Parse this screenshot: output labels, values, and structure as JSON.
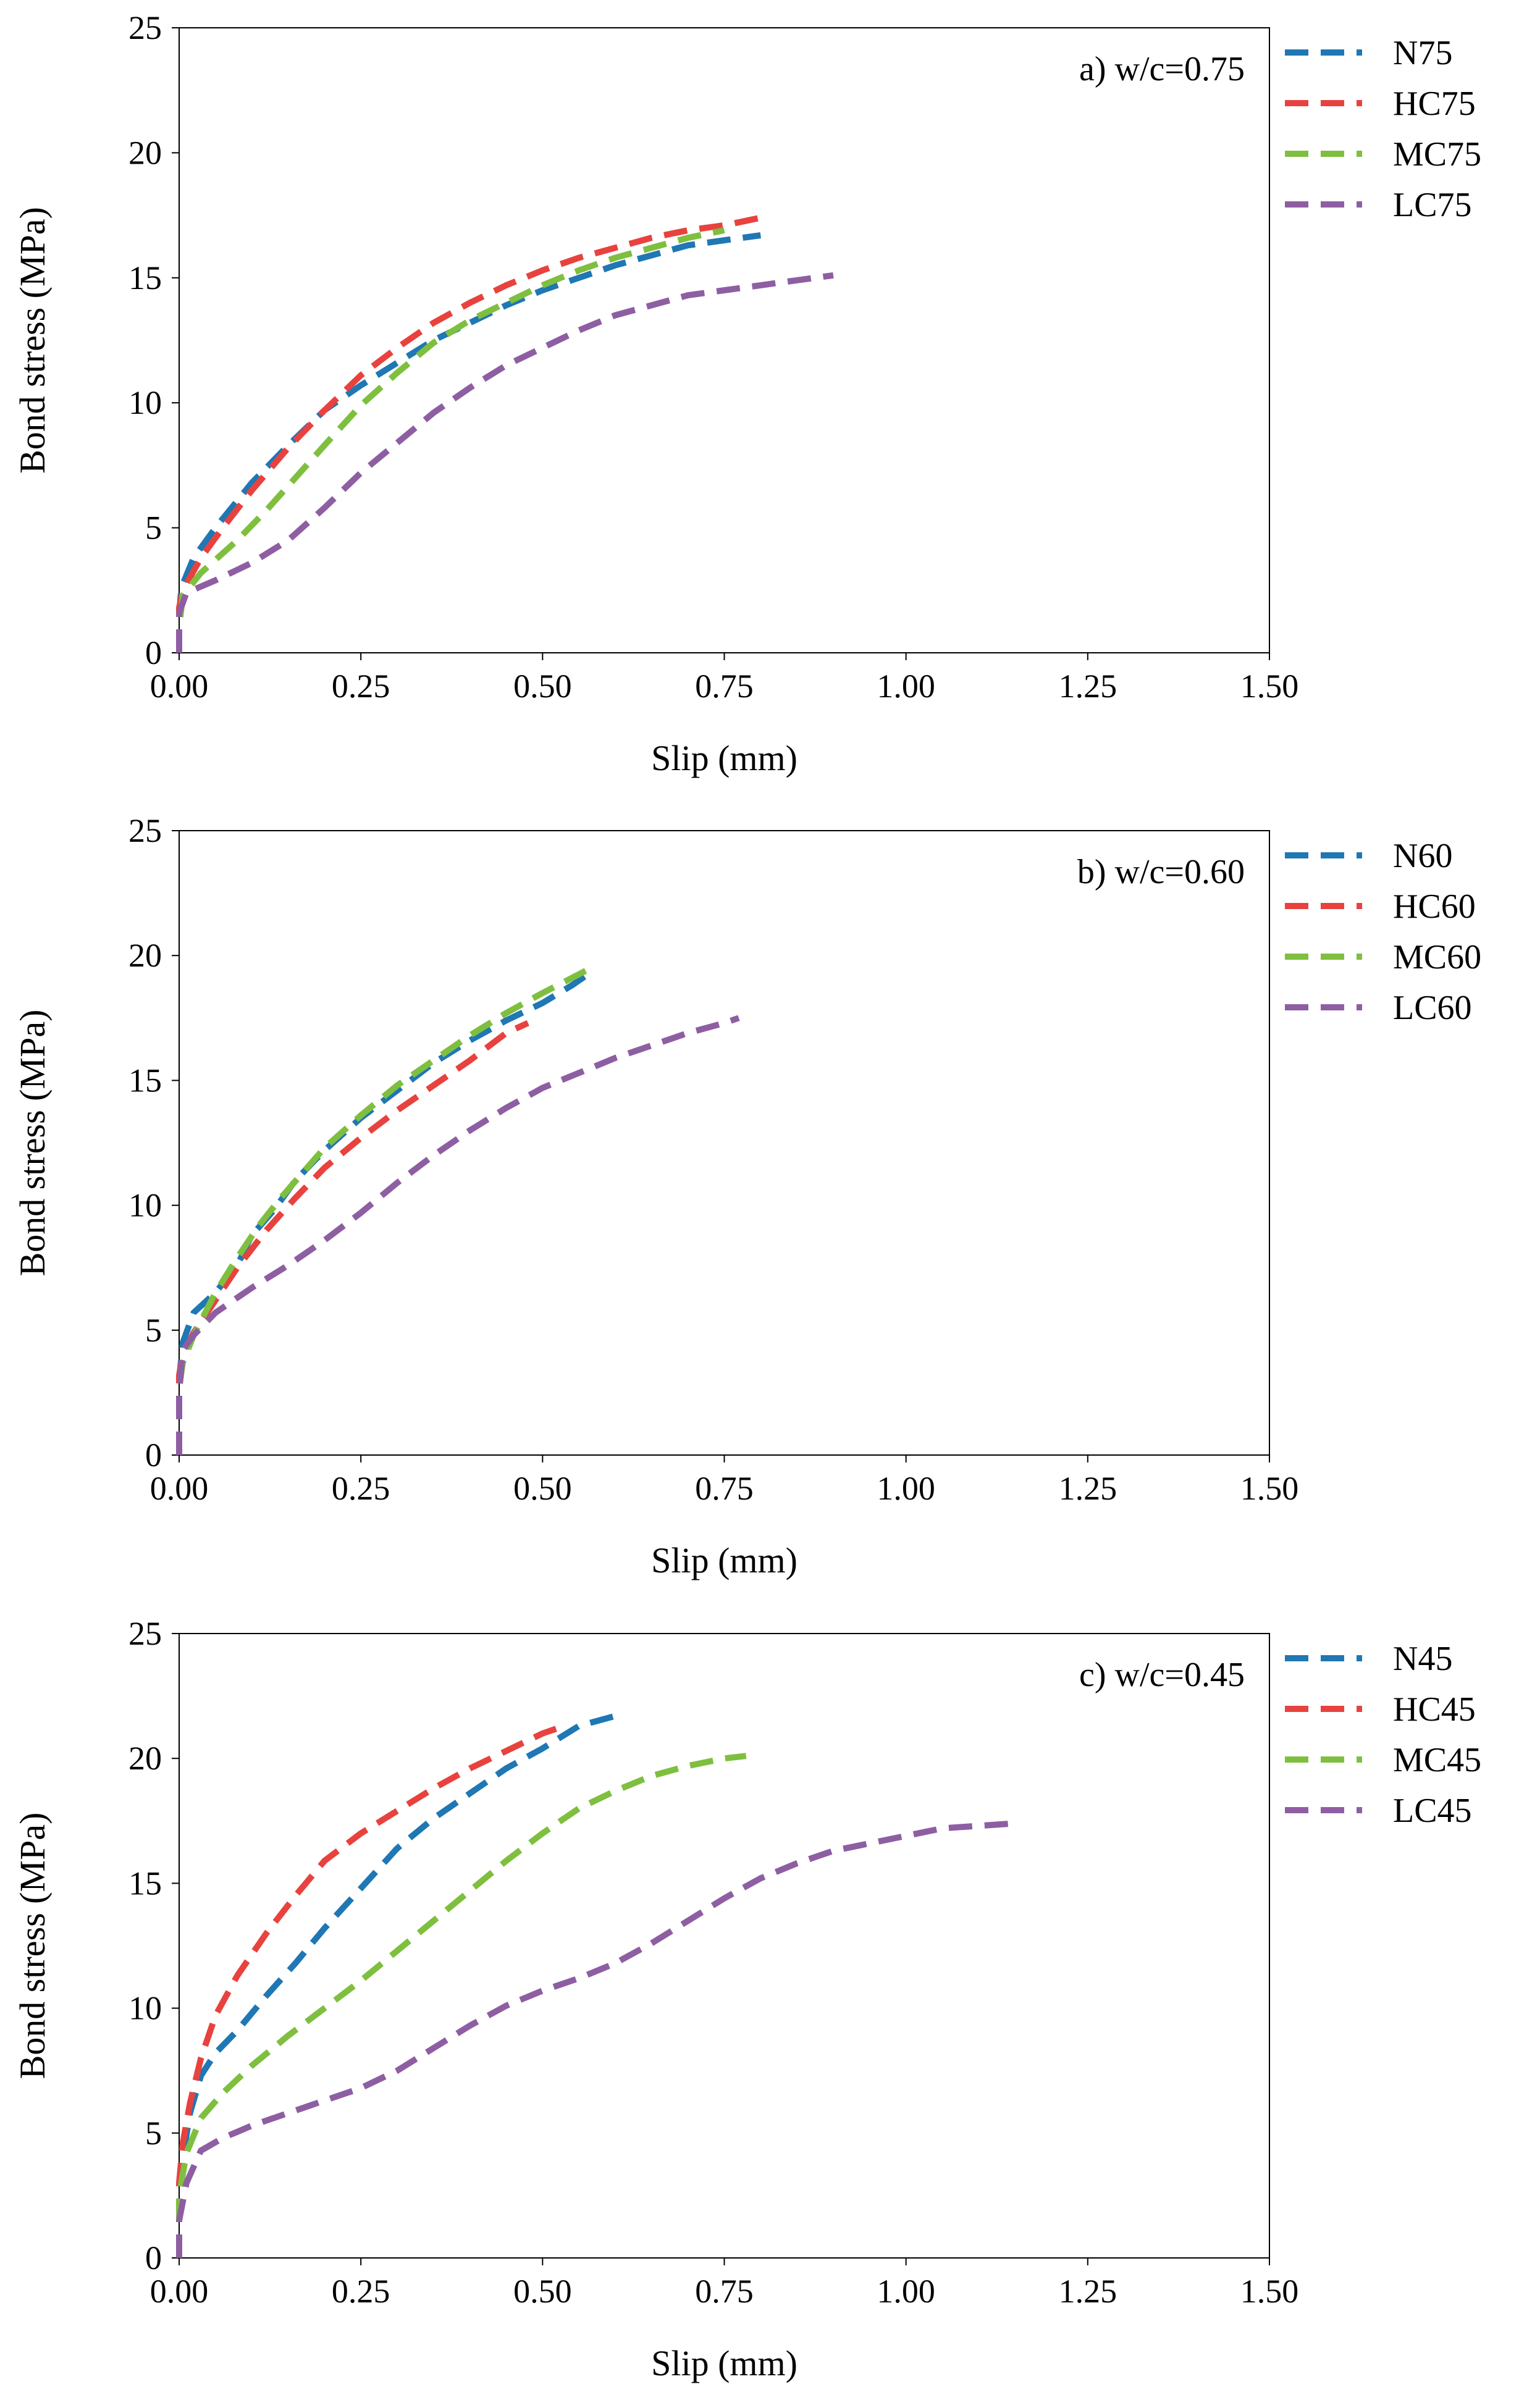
{
  "chart_data": [
    {
      "type": "line",
      "annotation": "a) w/c=0.75",
      "xlabel": "Slip (mm)",
      "ylabel": "Bond stress (MPa)",
      "xlim": [
        0,
        1.5
      ],
      "ylim": [
        0,
        25
      ],
      "xticks": [
        "0.00",
        "0.25",
        "0.50",
        "0.75",
        "1.00",
        "1.25",
        "1.50"
      ],
      "yticks": [
        "0",
        "5",
        "10",
        "15",
        "20",
        "25"
      ],
      "grid": false,
      "legend": "right",
      "series": [
        {
          "name": "N75",
          "color": "#1f77b4",
          "points": [
            [
              0,
              0
            ],
            [
              0,
              1.5
            ],
            [
              0.003,
              2.6
            ],
            [
              0.02,
              3.8
            ],
            [
              0.05,
              5.0
            ],
            [
              0.1,
              6.8
            ],
            [
              0.15,
              8.3
            ],
            [
              0.2,
              9.7
            ],
            [
              0.25,
              10.7
            ],
            [
              0.3,
              11.6
            ],
            [
              0.35,
              12.5
            ],
            [
              0.4,
              13.2
            ],
            [
              0.45,
              13.9
            ],
            [
              0.5,
              14.5
            ],
            [
              0.55,
              15.0
            ],
            [
              0.6,
              15.5
            ],
            [
              0.65,
              15.9
            ],
            [
              0.7,
              16.3
            ],
            [
              0.75,
              16.5
            ],
            [
              0.8,
              16.7
            ]
          ]
        },
        {
          "name": "HC75",
          "color": "#e8423f",
          "points": [
            [
              0,
              0
            ],
            [
              0,
              1.8
            ],
            [
              0.005,
              2.5
            ],
            [
              0.03,
              3.8
            ],
            [
              0.06,
              5.0
            ],
            [
              0.1,
              6.5
            ],
            [
              0.15,
              8.2
            ],
            [
              0.2,
              9.7
            ],
            [
              0.25,
              11.1
            ],
            [
              0.3,
              12.2
            ],
            [
              0.35,
              13.2
            ],
            [
              0.4,
              14.0
            ],
            [
              0.45,
              14.7
            ],
            [
              0.5,
              15.3
            ],
            [
              0.55,
              15.8
            ],
            [
              0.6,
              16.2
            ],
            [
              0.65,
              16.6
            ],
            [
              0.7,
              16.9
            ],
            [
              0.75,
              17.1
            ],
            [
              0.8,
              17.4
            ]
          ]
        },
        {
          "name": "MC75",
          "color": "#7fbf3f",
          "points": [
            [
              0,
              0
            ],
            [
              0,
              1.0
            ],
            [
              0.005,
              2.3
            ],
            [
              0.03,
              3.2
            ],
            [
              0.08,
              4.5
            ],
            [
              0.12,
              5.7
            ],
            [
              0.16,
              7.0
            ],
            [
              0.2,
              8.3
            ],
            [
              0.25,
              9.9
            ],
            [
              0.3,
              11.2
            ],
            [
              0.35,
              12.4
            ],
            [
              0.4,
              13.3
            ],
            [
              0.45,
              14.0
            ],
            [
              0.5,
              14.7
            ],
            [
              0.55,
              15.3
            ],
            [
              0.6,
              15.8
            ],
            [
              0.65,
              16.2
            ],
            [
              0.7,
              16.6
            ],
            [
              0.75,
              16.9
            ]
          ]
        },
        {
          "name": "LC75",
          "color": "#8e5ea2",
          "points": [
            [
              0,
              0
            ],
            [
              0,
              1.6
            ],
            [
              0.01,
              2.4
            ],
            [
              0.05,
              2.9
            ],
            [
              0.1,
              3.6
            ],
            [
              0.15,
              4.5
            ],
            [
              0.2,
              5.8
            ],
            [
              0.25,
              7.2
            ],
            [
              0.3,
              8.4
            ],
            [
              0.35,
              9.6
            ],
            [
              0.4,
              10.6
            ],
            [
              0.45,
              11.5
            ],
            [
              0.5,
              12.2
            ],
            [
              0.55,
              12.9
            ],
            [
              0.6,
              13.5
            ],
            [
              0.65,
              13.9
            ],
            [
              0.7,
              14.3
            ],
            [
              0.75,
              14.5
            ],
            [
              0.8,
              14.7
            ],
            [
              0.85,
              14.9
            ],
            [
              0.9,
              15.1
            ]
          ]
        }
      ]
    },
    {
      "type": "line",
      "annotation": "b) w/c=0.60",
      "xlabel": "Slip (mm)",
      "ylabel": "Bond stress (MPa)",
      "xlim": [
        0,
        1.5
      ],
      "ylim": [
        0,
        25
      ],
      "xticks": [
        "0.00",
        "0.25",
        "0.50",
        "0.75",
        "1.00",
        "1.25",
        "1.50"
      ],
      "yticks": [
        "0",
        "5",
        "10",
        "15",
        "20",
        "25"
      ],
      "grid": false,
      "legend": "right",
      "series": [
        {
          "name": "N60",
          "color": "#1f77b4",
          "points": [
            [
              0,
              0
            ],
            [
              0,
              3.0
            ],
            [
              0.005,
              4.5
            ],
            [
              0.02,
              5.7
            ],
            [
              0.05,
              6.5
            ],
            [
              0.08,
              7.6
            ],
            [
              0.1,
              8.8
            ],
            [
              0.13,
              9.8
            ],
            [
              0.16,
              11.0
            ],
            [
              0.2,
              12.2
            ],
            [
              0.25,
              13.5
            ],
            [
              0.3,
              14.6
            ],
            [
              0.35,
              15.7
            ],
            [
              0.4,
              16.6
            ],
            [
              0.45,
              17.4
            ],
            [
              0.5,
              18.1
            ],
            [
              0.54,
              18.8
            ],
            [
              0.56,
              19.2
            ]
          ]
        },
        {
          "name": "HC60",
          "color": "#e8423f",
          "points": [
            [
              0,
              0
            ],
            [
              0,
              3.2
            ],
            [
              0.005,
              4.0
            ],
            [
              0.02,
              4.9
            ],
            [
              0.05,
              6.2
            ],
            [
              0.08,
              7.5
            ],
            [
              0.12,
              9.0
            ],
            [
              0.16,
              10.3
            ],
            [
              0.2,
              11.5
            ],
            [
              0.25,
              12.7
            ],
            [
              0.3,
              13.8
            ],
            [
              0.35,
              14.8
            ],
            [
              0.4,
              15.8
            ],
            [
              0.45,
              16.9
            ],
            [
              0.48,
              17.3
            ]
          ]
        },
        {
          "name": "MC60",
          "color": "#7fbf3f",
          "points": [
            [
              0,
              0
            ],
            [
              0,
              2.7
            ],
            [
              0.005,
              3.7
            ],
            [
              0.02,
              4.8
            ],
            [
              0.05,
              6.5
            ],
            [
              0.08,
              7.9
            ],
            [
              0.11,
              9.2
            ],
            [
              0.14,
              10.3
            ],
            [
              0.17,
              11.3
            ],
            [
              0.2,
              12.3
            ],
            [
              0.25,
              13.6
            ],
            [
              0.3,
              14.8
            ],
            [
              0.35,
              15.8
            ],
            [
              0.4,
              16.8
            ],
            [
              0.45,
              17.7
            ],
            [
              0.5,
              18.5
            ],
            [
              0.56,
              19.4
            ]
          ]
        },
        {
          "name": "LC60",
          "color": "#8e5ea2",
          "points": [
            [
              0,
              0
            ],
            [
              0,
              2.5
            ],
            [
              0.005,
              4.2
            ],
            [
              0.02,
              4.8
            ],
            [
              0.05,
              5.7
            ],
            [
              0.1,
              6.7
            ],
            [
              0.15,
              7.6
            ],
            [
              0.2,
              8.6
            ],
            [
              0.25,
              9.7
            ],
            [
              0.3,
              10.9
            ],
            [
              0.35,
              12.0
            ],
            [
              0.4,
              13.0
            ],
            [
              0.45,
              13.9
            ],
            [
              0.5,
              14.7
            ],
            [
              0.55,
              15.3
            ],
            [
              0.6,
              15.9
            ],
            [
              0.65,
              16.4
            ],
            [
              0.7,
              16.9
            ],
            [
              0.75,
              17.3
            ],
            [
              0.77,
              17.5
            ]
          ]
        }
      ]
    },
    {
      "type": "line",
      "annotation": "c) w/c=0.45",
      "xlabel": "Slip (mm)",
      "ylabel": "Bond stress (MPa)",
      "xlim": [
        0,
        1.5
      ],
      "ylim": [
        0,
        25
      ],
      "xticks": [
        "0.00",
        "0.25",
        "0.50",
        "0.75",
        "1.00",
        "1.25",
        "1.50"
      ],
      "yticks": [
        "0",
        "5",
        "10",
        "15",
        "20",
        "25"
      ],
      "grid": false,
      "legend": "right",
      "series": [
        {
          "name": "N45",
          "color": "#1f77b4",
          "points": [
            [
              0,
              0
            ],
            [
              0,
              2.0
            ],
            [
              0.005,
              4.0
            ],
            [
              0.015,
              5.8
            ],
            [
              0.03,
              7.3
            ],
            [
              0.05,
              8.2
            ],
            [
              0.08,
              9.1
            ],
            [
              0.12,
              10.5
            ],
            [
              0.16,
              11.8
            ],
            [
              0.2,
              13.2
            ],
            [
              0.25,
              14.8
            ],
            [
              0.3,
              16.4
            ],
            [
              0.35,
              17.6
            ],
            [
              0.4,
              18.6
            ],
            [
              0.45,
              19.6
            ],
            [
              0.5,
              20.4
            ],
            [
              0.55,
              21.3
            ],
            [
              0.6,
              21.7
            ]
          ]
        },
        {
          "name": "HC45",
          "color": "#e8423f",
          "points": [
            [
              0,
              0
            ],
            [
              0,
              3.0
            ],
            [
              0.005,
              4.6
            ],
            [
              0.015,
              6.2
            ],
            [
              0.03,
              8.0
            ],
            [
              0.05,
              9.7
            ],
            [
              0.08,
              11.3
            ],
            [
              0.12,
              13.0
            ],
            [
              0.16,
              14.5
            ],
            [
              0.2,
              15.9
            ],
            [
              0.25,
              17.0
            ],
            [
              0.3,
              17.9
            ],
            [
              0.35,
              18.8
            ],
            [
              0.4,
              19.6
            ],
            [
              0.45,
              20.3
            ],
            [
              0.5,
              21.0
            ],
            [
              0.53,
              21.3
            ]
          ]
        },
        {
          "name": "MC45",
          "color": "#7fbf3f",
          "points": [
            [
              0,
              0
            ],
            [
              0,
              2.5
            ],
            [
              0.01,
              4.2
            ],
            [
              0.03,
              5.6
            ],
            [
              0.06,
              6.6
            ],
            [
              0.1,
              7.7
            ],
            [
              0.15,
              8.9
            ],
            [
              0.2,
              10.0
            ],
            [
              0.25,
              11.1
            ],
            [
              0.3,
              12.3
            ],
            [
              0.35,
              13.5
            ],
            [
              0.4,
              14.7
            ],
            [
              0.45,
              15.9
            ],
            [
              0.5,
              17.0
            ],
            [
              0.55,
              18.0
            ],
            [
              0.6,
              18.7
            ],
            [
              0.65,
              19.3
            ],
            [
              0.7,
              19.7
            ],
            [
              0.75,
              20.0
            ],
            [
              0.78,
              20.1
            ]
          ]
        },
        {
          "name": "LC45",
          "color": "#8e5ea2",
          "points": [
            [
              0,
              0
            ],
            [
              0,
              1.5
            ],
            [
              0.01,
              3.0
            ],
            [
              0.03,
              4.3
            ],
            [
              0.06,
              4.8
            ],
            [
              0.1,
              5.3
            ],
            [
              0.15,
              5.8
            ],
            [
              0.2,
              6.3
            ],
            [
              0.25,
              6.8
            ],
            [
              0.3,
              7.5
            ],
            [
              0.35,
              8.4
            ],
            [
              0.4,
              9.3
            ],
            [
              0.45,
              10.1
            ],
            [
              0.5,
              10.7
            ],
            [
              0.55,
              11.2
            ],
            [
              0.6,
              11.8
            ],
            [
              0.65,
              12.6
            ],
            [
              0.7,
              13.5
            ],
            [
              0.75,
              14.4
            ],
            [
              0.8,
              15.2
            ],
            [
              0.85,
              15.8
            ],
            [
              0.9,
              16.3
            ],
            [
              0.95,
              16.6
            ],
            [
              1.0,
              16.9
            ],
            [
              1.05,
              17.2
            ],
            [
              1.1,
              17.3
            ],
            [
              1.15,
              17.4
            ]
          ]
        }
      ]
    }
  ]
}
